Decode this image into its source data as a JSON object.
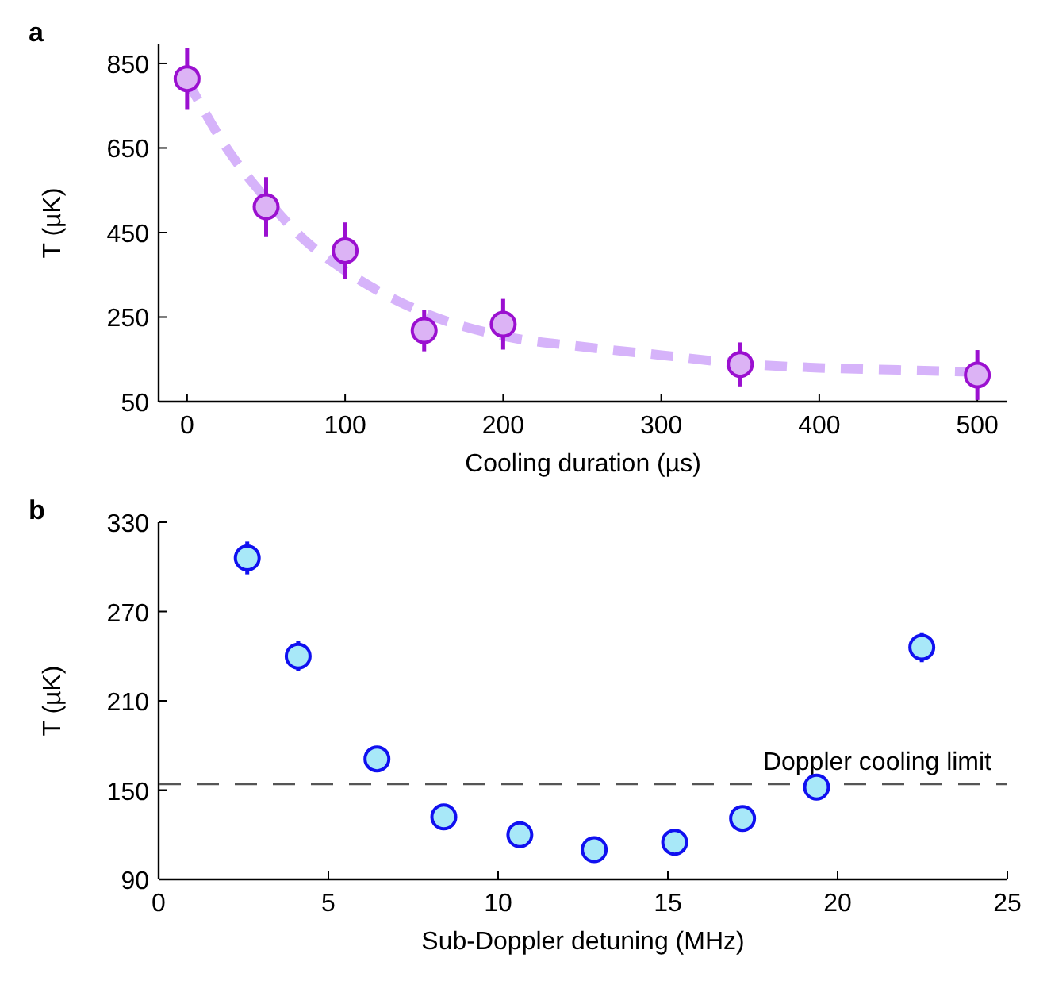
{
  "chart_data": [
    {
      "type": "scatter",
      "title": "a",
      "xlabel": "Cooling duration (µs)",
      "ylabel": "T (µK)",
      "xlim": [
        -18,
        519
      ],
      "ylim": [
        50,
        895
      ],
      "xticks": [
        0,
        100,
        200,
        300,
        400,
        500
      ],
      "yticks": [
        50,
        250,
        450,
        650,
        850
      ],
      "marker": "circle",
      "series": [
        {
          "type": "line",
          "marker": "none",
          "line_style": "dashed",
          "color": "#d6b3fa",
          "x": [
            0,
            25,
            50,
            75,
            100,
            150,
            200,
            250,
            300,
            350,
            400,
            450,
            500
          ],
          "values": [
            810,
            650,
            530,
            430,
            360,
            260,
            205,
            180,
            160,
            140,
            130,
            125,
            120
          ]
        },
        {
          "color": "#9b10d0",
          "x": [
            0,
            50,
            100,
            150,
            200,
            350,
            500
          ],
          "values": [
            814,
            511,
            407,
            218,
            233,
            138,
            113
          ],
          "errors": [
            72,
            70,
            67,
            49,
            60,
            52,
            59
          ]
        }
      ]
    },
    {
      "type": "scatter",
      "title": "b",
      "xlabel": "Sub-Doppler detuning (MHz)",
      "ylabel": "T (µK)",
      "xlim": [
        0,
        25
      ],
      "ylim": [
        90,
        330
      ],
      "xticks": [
        0,
        5,
        10,
        15,
        20,
        25
      ],
      "yticks": [
        90,
        150,
        210,
        270,
        330
      ],
      "marker": "circle",
      "ref_lines": [
        {
          "axis": "y",
          "value": 154,
          "label": "Doppler cooling limit",
          "color": "#555555",
          "line_style": "dashed"
        }
      ],
      "series": [
        {
          "color": "#1010f0",
          "x": [
            2.61,
            4.11,
            6.43,
            8.4,
            10.64,
            12.83,
            15.2,
            17.2,
            19.38,
            22.48
          ],
          "values": [
            306,
            240,
            171,
            132,
            120,
            110,
            115,
            131,
            152,
            246
          ],
          "errors": [
            11,
            10,
            null,
            null,
            null,
            null,
            null,
            null,
            null,
            10
          ]
        }
      ]
    }
  ]
}
